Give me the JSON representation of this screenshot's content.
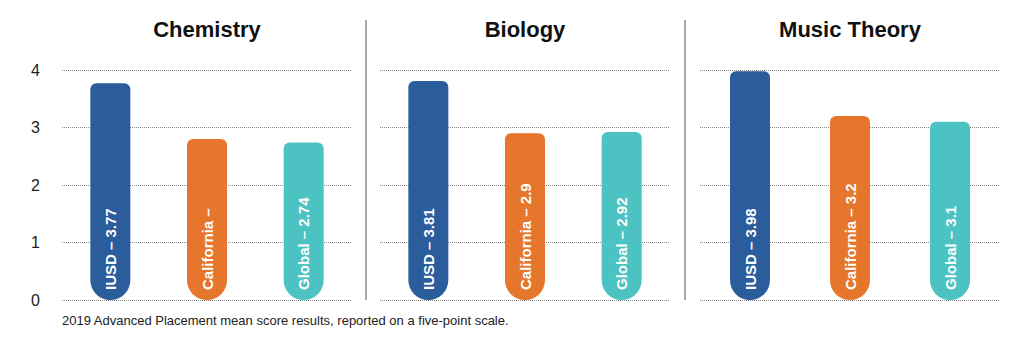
{
  "chart_data": [
    {
      "type": "bar",
      "title": "Chemistry",
      "categories": [
        "IUSD",
        "California",
        "Global"
      ],
      "values": [
        3.77,
        2.8,
        2.74
      ],
      "value_labels": [
        "IUSD – 3.77",
        "California –",
        "Global – 2.74"
      ],
      "colors": [
        "#2b5c9b",
        "#e6762c",
        "#4cc2c3"
      ],
      "ylim": [
        0,
        4
      ],
      "yticks": [
        0,
        1,
        2,
        3,
        4
      ],
      "grid": true,
      "data_labels": true,
      "tick_labels": "y"
    },
    {
      "type": "bar",
      "title": "Biology",
      "categories": [
        "IUSD",
        "California",
        "Global"
      ],
      "values": [
        3.81,
        2.9,
        2.92
      ],
      "value_labels": [
        "IUSD – 3.81",
        "California – 2.9",
        "Global – 2.92"
      ],
      "colors": [
        "#2b5c9b",
        "#e6762c",
        "#4cc2c3"
      ],
      "ylim": [
        0,
        4
      ],
      "yticks": [
        0,
        1,
        2,
        3,
        4
      ],
      "grid": true,
      "data_labels": true,
      "tick_labels": false
    },
    {
      "type": "bar",
      "title": "Music Theory",
      "categories": [
        "IUSD",
        "California",
        "Global"
      ],
      "values": [
        3.98,
        3.2,
        3.1
      ],
      "value_labels": [
        "IUSD – 3.98",
        "California – 3.2",
        "Global – 3.1"
      ],
      "colors": [
        "#2b5c9b",
        "#e6762c",
        "#4cc2c3"
      ],
      "ylim": [
        0,
        4
      ],
      "yticks": [
        0,
        1,
        2,
        3,
        4
      ],
      "grid": true,
      "data_labels": true,
      "tick_labels": false
    }
  ],
  "footnote": "2019 Advanced Placement mean score results, reported on a five-point scale."
}
